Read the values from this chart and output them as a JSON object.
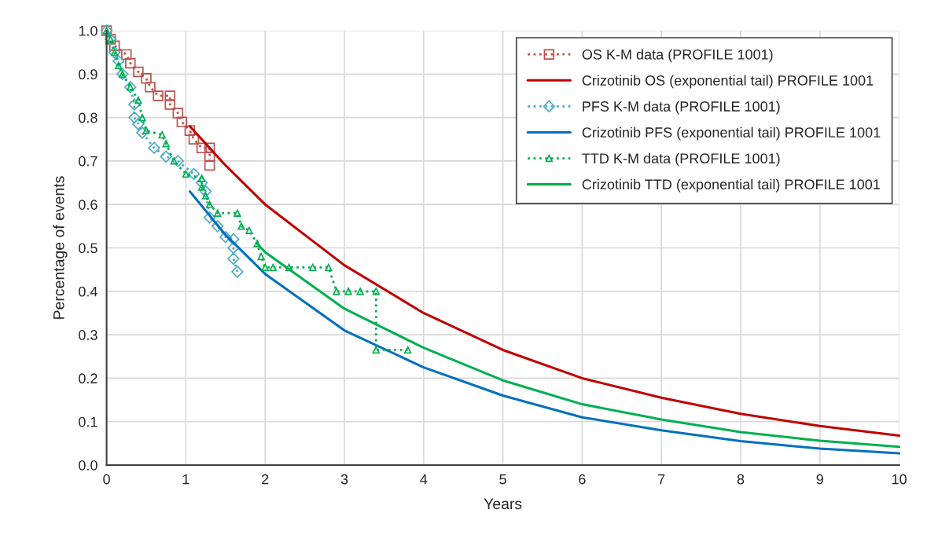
{
  "chart_data": {
    "type": "line",
    "xlabel": "Years",
    "ylabel": "Percentage of events",
    "xlim": [
      0,
      10
    ],
    "ylim": [
      0,
      1
    ],
    "xticks": [
      0,
      1,
      2,
      3,
      4,
      5,
      6,
      7,
      8,
      9,
      10
    ],
    "yticks": [
      {
        "value": 0,
        "label": "0.0"
      },
      {
        "value": 0.1,
        "label": "0.1"
      },
      {
        "value": 0.2,
        "label": "0.2"
      },
      {
        "value": 0.3,
        "label": "0.3"
      },
      {
        "value": 0.4,
        "label": "0.4"
      },
      {
        "value": 0.5,
        "label": "0.5"
      },
      {
        "value": 0.6,
        "label": "0.6"
      },
      {
        "value": 0.7,
        "label": "0.7"
      },
      {
        "value": 0.8,
        "label": "0.8"
      },
      {
        "value": 0.9,
        "label": "0.9"
      },
      {
        "value": 1.0,
        "label": "1.0"
      }
    ],
    "grid": true,
    "legend": "top right",
    "series": [
      {
        "name": "OS K-M data (PROFILE 1001)",
        "color": "#c0504d",
        "marker": "square",
        "line_style": "dotted",
        "x": [
          0,
          0.05,
          0.1,
          0.25,
          0.3,
          0.4,
          0.5,
          0.55,
          0.65,
          0.8,
          0.8,
          0.9,
          0.95,
          1.05,
          1.1,
          1.2,
          1.3,
          1.3,
          1.3
        ],
        "values": [
          1.0,
          0.98,
          0.965,
          0.945,
          0.925,
          0.905,
          0.89,
          0.87,
          0.85,
          0.85,
          0.83,
          0.81,
          0.79,
          0.77,
          0.75,
          0.73,
          0.73,
          0.71,
          0.69
        ]
      },
      {
        "name": "Crizotinib OS (exponential tail) PROFILE 1001",
        "color": "#c00000",
        "marker": "none",
        "line_style": "solid",
        "x": [
          1.05,
          1.5,
          2,
          3,
          4,
          5,
          6,
          7,
          8,
          9,
          10
        ],
        "values": [
          0.78,
          0.69,
          0.6,
          0.46,
          0.35,
          0.265,
          0.2,
          0.155,
          0.118,
          0.09,
          0.068
        ]
      },
      {
        "name": "PFS K-M data (PROFILE 1001)",
        "color": "#4bacc6",
        "marker": "diamond",
        "line_style": "dotted",
        "x": [
          0,
          0.05,
          0.1,
          0.15,
          0.2,
          0.3,
          0.35,
          0.35,
          0.4,
          0.45,
          0.6,
          0.75,
          0.9,
          1.1,
          1.2,
          1.25,
          1.3,
          1.4,
          1.5,
          1.6,
          1.6,
          1.6,
          1.65
        ],
        "values": [
          1.0,
          0.98,
          0.95,
          0.93,
          0.9,
          0.87,
          0.83,
          0.8,
          0.785,
          0.765,
          0.73,
          0.71,
          0.7,
          0.67,
          0.65,
          0.63,
          0.57,
          0.55,
          0.525,
          0.52,
          0.5,
          0.475,
          0.445
        ]
      },
      {
        "name": "Crizotinib PFS (exponential tail) PROFILE 1001",
        "color": "#0070c0",
        "marker": "none",
        "line_style": "solid",
        "x": [
          1.05,
          1.5,
          2,
          3,
          4,
          5,
          6,
          7,
          8,
          9,
          10
        ],
        "values": [
          0.63,
          0.53,
          0.44,
          0.31,
          0.225,
          0.16,
          0.11,
          0.08,
          0.055,
          0.038,
          0.027
        ]
      },
      {
        "name": "TTD K-M data (PROFILE 1001)",
        "color": "#00b050",
        "marker": "triangle",
        "line_style": "dotted",
        "x": [
          0,
          0.05,
          0.1,
          0.15,
          0.2,
          0.3,
          0.4,
          0.45,
          0.5,
          0.7,
          0.75,
          0.85,
          1.0,
          1.2,
          1.2,
          1.25,
          1.3,
          1.4,
          1.65,
          1.7,
          1.8,
          1.9,
          1.95,
          2.0,
          2.1,
          2.3,
          2.6,
          2.8,
          2.9,
          3.05,
          3.2,
          3.4,
          3.4,
          3.8
        ],
        "values": [
          1.0,
          0.98,
          0.95,
          0.92,
          0.9,
          0.87,
          0.84,
          0.8,
          0.77,
          0.76,
          0.74,
          0.7,
          0.67,
          0.66,
          0.64,
          0.62,
          0.6,
          0.58,
          0.58,
          0.55,
          0.54,
          0.51,
          0.48,
          0.455,
          0.455,
          0.455,
          0.455,
          0.455,
          0.4,
          0.4,
          0.4,
          0.4,
          0.265,
          0.265
        ]
      },
      {
        "name": "Crizotinib TTD (exponential tail) PROFILE 1001",
        "color": "#00b050",
        "marker": "none",
        "line_style": "solid",
        "x": [
          1.9,
          2,
          3,
          4,
          5,
          6,
          7,
          8,
          9,
          10
        ],
        "values": [
          0.51,
          0.49,
          0.36,
          0.27,
          0.195,
          0.14,
          0.105,
          0.076,
          0.056,
          0.042
        ]
      }
    ]
  }
}
